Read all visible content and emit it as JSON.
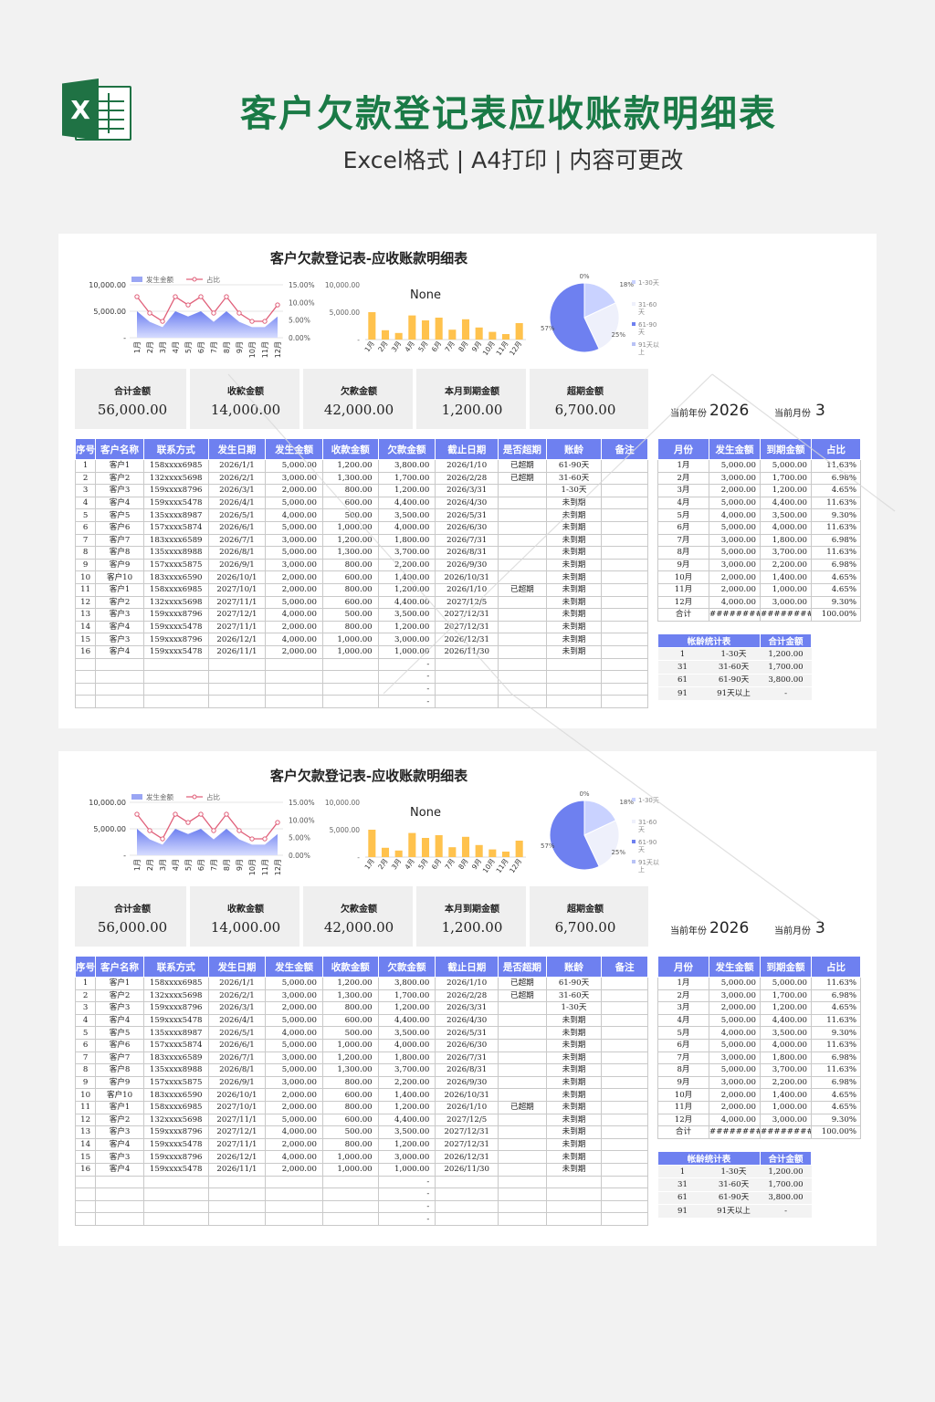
{
  "header": {
    "logo_letter": "X",
    "title": "客户欠款登记表应收账款明细表",
    "subtitle": "Excel格式 | A4打印 | 内容可更改"
  },
  "sheet": {
    "title": "客户欠款登记表-应收账款明细表",
    "colors": {
      "accent": "#6e80f0",
      "bar": "#ffc24d",
      "line": "#e0607a",
      "header_green": "#1a7a46"
    }
  },
  "chart_data": [
    {
      "type": "area",
      "legend": [
        "发生金额",
        "占比"
      ],
      "categories": [
        "1月",
        "2月",
        "3月",
        "4月",
        "5月",
        "6月",
        "7月",
        "8月",
        "9月",
        "10月",
        "11月",
        "12月"
      ],
      "y_ticks": [
        "-",
        "5,000.00",
        "10,000.00"
      ],
      "y2_ticks": [
        "0.00%",
        "5.00%",
        "10.00%",
        "15.00%"
      ],
      "ylim": [
        0,
        10000
      ],
      "y2lim": [
        0,
        0.15
      ],
      "series": [
        {
          "name": "发生金额",
          "values": [
            5000,
            3000,
            2000,
            5000,
            4000,
            5000,
            3000,
            5000,
            3000,
            2000,
            2000,
            4000
          ]
        },
        {
          "name": "占比",
          "values": [
            11.63,
            6.98,
            4.65,
            11.63,
            9.3,
            11.63,
            6.98,
            11.63,
            6.98,
            4.65,
            4.65,
            9.3
          ]
        }
      ]
    },
    {
      "type": "bar",
      "title": "None",
      "y_ticks": [
        "-",
        "5,000.00",
        "10,000.00"
      ],
      "ylim": [
        0,
        10000
      ],
      "categories": [
        "1月",
        "2月",
        "3月",
        "4月",
        "5月",
        "6月",
        "7月",
        "8月",
        "9月",
        "10月",
        "11月",
        "12月"
      ],
      "values": [
        5000,
        1700,
        1200,
        4400,
        3500,
        4000,
        1800,
        3700,
        2200,
        1400,
        1000,
        3000
      ]
    },
    {
      "type": "pie",
      "legend": [
        "1-30天",
        "31-60天",
        "61-90天",
        "91天以上"
      ],
      "slice_labels": [
        "18%",
        "25%",
        "57%",
        "0%"
      ],
      "values": [
        18,
        25,
        57,
        0
      ]
    }
  ],
  "summary": [
    {
      "label": "合计金额",
      "value": "56,000.00"
    },
    {
      "label": "收款金额",
      "value": "14,000.00"
    },
    {
      "label": "欠款金额",
      "value": "42,000.00"
    },
    {
      "label": "本月到期金额",
      "value": "1,200.00"
    },
    {
      "label": "超期金额",
      "value": "6,700.00"
    }
  ],
  "current": {
    "year_label": "当前年份",
    "year": "2026",
    "month_label": "当前月份",
    "month": "3"
  },
  "main_table": {
    "headers": [
      "序号",
      "客户名称",
      "联系方式",
      "发生日期",
      "发生金额",
      "收款金额",
      "欠款金额",
      "截止日期",
      "是否超期",
      "账龄",
      "备注"
    ],
    "rows": [
      [
        "1",
        "客户1",
        "158xxxx6985",
        "2026/1/1",
        "5,000.00",
        "1,200.00",
        "3,800.00",
        "2026/1/10",
        "已超期",
        "61-90天",
        ""
      ],
      [
        "2",
        "客户2",
        "132xxxx5698",
        "2026/2/1",
        "3,000.00",
        "1,300.00",
        "1,700.00",
        "2026/2/28",
        "已超期",
        "31-60天",
        ""
      ],
      [
        "3",
        "客户3",
        "159xxxx8796",
        "2026/3/1",
        "2,000.00",
        "800.00",
        "1,200.00",
        "2026/3/31",
        "",
        "1-30天",
        ""
      ],
      [
        "4",
        "客户4",
        "159xxxx5478",
        "2026/4/1",
        "5,000.00",
        "600.00",
        "4,400.00",
        "2026/4/30",
        "",
        "未到期",
        ""
      ],
      [
        "5",
        "客户5",
        "135xxxx8987",
        "2026/5/1",
        "4,000.00",
        "500.00",
        "3,500.00",
        "2026/5/31",
        "",
        "未到期",
        ""
      ],
      [
        "6",
        "客户6",
        "157xxxx5874",
        "2026/6/1",
        "5,000.00",
        "1,000.00",
        "4,000.00",
        "2026/6/30",
        "",
        "未到期",
        ""
      ],
      [
        "7",
        "客户7",
        "183xxxx6589",
        "2026/7/1",
        "3,000.00",
        "1,200.00",
        "1,800.00",
        "2026/7/31",
        "",
        "未到期",
        ""
      ],
      [
        "8",
        "客户8",
        "135xxxx8988",
        "2026/8/1",
        "5,000.00",
        "1,300.00",
        "3,700.00",
        "2026/8/31",
        "",
        "未到期",
        ""
      ],
      [
        "9",
        "客户9",
        "157xxxx5875",
        "2026/9/1",
        "3,000.00",
        "800.00",
        "2,200.00",
        "2026/9/30",
        "",
        "未到期",
        ""
      ],
      [
        "10",
        "客户10",
        "183xxxx6590",
        "2026/10/1",
        "2,000.00",
        "600.00",
        "1,400.00",
        "2026/10/31",
        "",
        "未到期",
        ""
      ],
      [
        "11",
        "客户1",
        "158xxxx6985",
        "2027/10/1",
        "2,000.00",
        "800.00",
        "1,200.00",
        "2026/1/10",
        "已超期",
        "未到期",
        ""
      ],
      [
        "12",
        "客户2",
        "132xxxx5698",
        "2027/11/1",
        "5,000.00",
        "600.00",
        "4,400.00",
        "2027/12/5",
        "",
        "未到期",
        ""
      ],
      [
        "13",
        "客户3",
        "159xxxx8796",
        "2027/12/1",
        "4,000.00",
        "500.00",
        "3,500.00",
        "2027/12/31",
        "",
        "未到期",
        ""
      ],
      [
        "14",
        "客户4",
        "159xxxx5478",
        "2027/11/1",
        "2,000.00",
        "800.00",
        "1,200.00",
        "2027/12/31",
        "",
        "未到期",
        ""
      ],
      [
        "15",
        "客户3",
        "159xxxx8796",
        "2026/12/1",
        "4,000.00",
        "1,000.00",
        "3,000.00",
        "2026/12/31",
        "",
        "未到期",
        ""
      ],
      [
        "16",
        "客户4",
        "159xxxx5478",
        "2026/11/1",
        "2,000.00",
        "1,000.00",
        "1,000.00",
        "2026/11/30",
        "",
        "未到期",
        ""
      ],
      [
        "",
        "",
        "",
        "",
        "",
        "",
        "-",
        "",
        "",
        "",
        ""
      ],
      [
        "",
        "",
        "",
        "",
        "",
        "",
        "-",
        "",
        "",
        "",
        ""
      ],
      [
        "",
        "",
        "",
        "",
        "",
        "",
        "-",
        "",
        "",
        "",
        ""
      ],
      [
        "",
        "",
        "",
        "",
        "",
        "",
        "-",
        "",
        "",
        "",
        ""
      ]
    ]
  },
  "month_table": {
    "headers": [
      "月份",
      "发生金额",
      "到期金额",
      "占比"
    ],
    "rows": [
      [
        "1月",
        "5,000.00",
        "5,000.00",
        "11.63%"
      ],
      [
        "2月",
        "3,000.00",
        "1,700.00",
        "6.98%"
      ],
      [
        "3月",
        "2,000.00",
        "1,200.00",
        "4.65%"
      ],
      [
        "4月",
        "5,000.00",
        "4,400.00",
        "11.63%"
      ],
      [
        "5月",
        "4,000.00",
        "3,500.00",
        "9.30%"
      ],
      [
        "6月",
        "5,000.00",
        "4,000.00",
        "11.63%"
      ],
      [
        "7月",
        "3,000.00",
        "1,800.00",
        "6.98%"
      ],
      [
        "8月",
        "5,000.00",
        "3,700.00",
        "11.63%"
      ],
      [
        "9月",
        "3,000.00",
        "2,200.00",
        "6.98%"
      ],
      [
        "10月",
        "2,000.00",
        "1,400.00",
        "4.65%"
      ],
      [
        "11月",
        "2,000.00",
        "1,000.00",
        "4.65%"
      ],
      [
        "12月",
        "4,000.00",
        "3,000.00",
        "9.30%"
      ],
      [
        "合计",
        "##########",
        "##########",
        "100.00%"
      ]
    ]
  },
  "age_table": {
    "headers": [
      "帐龄统计表",
      "合计金额"
    ],
    "rows": [
      [
        "1",
        "1-30天",
        "1,200.00"
      ],
      [
        "31",
        "31-60天",
        "1,700.00"
      ],
      [
        "61",
        "61-90天",
        "3,800.00"
      ],
      [
        "91",
        "91天以上",
        "-"
      ]
    ]
  }
}
